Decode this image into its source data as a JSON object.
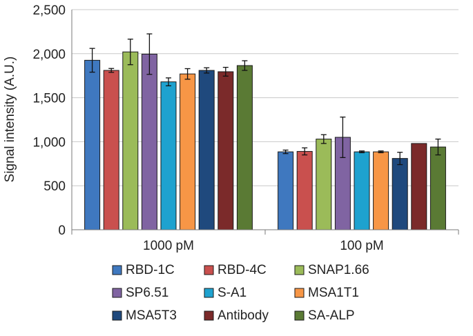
{
  "chart_data": {
    "type": "bar",
    "title": "",
    "xlabel": "",
    "ylabel": "Signal intensity (A.U.)",
    "ylim": [
      0,
      2500
    ],
    "yticks": [
      0,
      500,
      1000,
      1500,
      2000,
      2500
    ],
    "ytick_labels": [
      "0",
      "500",
      "1,000",
      "1,500",
      "2,000",
      "2,500"
    ],
    "grid": true,
    "legend_position": "bottom",
    "categories": [
      "1000 pM",
      "100 pM"
    ],
    "series": [
      {
        "name": "RBD-1C",
        "color": "#3f78bf",
        "values": [
          1925,
          885
        ],
        "errors": [
          135,
          20
        ]
      },
      {
        "name": "RBD-4C",
        "color": "#c9504e",
        "values": [
          1810,
          890
        ],
        "errors": [
          22,
          40
        ]
      },
      {
        "name": "SNAP1.66",
        "color": "#9bbb59",
        "values": [
          2020,
          1030
        ],
        "errors": [
          145,
          50
        ]
      },
      {
        "name": "SP6.51",
        "color": "#8064a2",
        "values": [
          1995,
          1050
        ],
        "errors": [
          230,
          230
        ]
      },
      {
        "name": "S-A1",
        "color": "#1ea2cf",
        "values": [
          1680,
          885
        ],
        "errors": [
          45,
          10
        ]
      },
      {
        "name": "MSA1T1",
        "color": "#f79646",
        "values": [
          1770,
          885
        ],
        "errors": [
          60,
          10
        ]
      },
      {
        "name": "MSA5T3",
        "color": "#1f497d",
        "values": [
          1810,
          810
        ],
        "errors": [
          30,
          70
        ]
      },
      {
        "name": "Antibody",
        "color": "#7b2a2a",
        "values": [
          1795,
          980
        ],
        "errors": [
          50,
          0
        ]
      },
      {
        "name": "SA-ALP",
        "color": "#5a7a34",
        "values": [
          1865,
          940
        ],
        "errors": [
          55,
          90
        ]
      }
    ]
  }
}
